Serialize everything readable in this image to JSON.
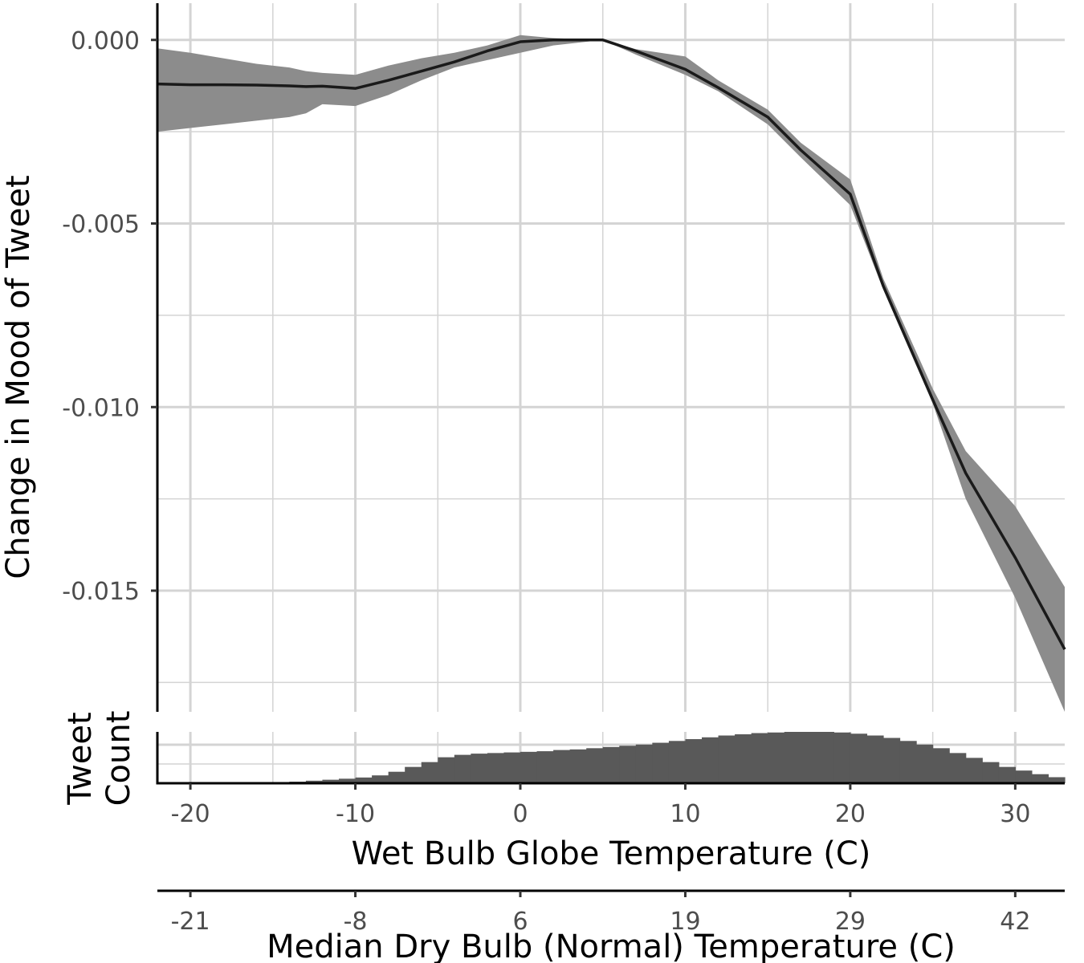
{
  "chart_data": {
    "type": "line",
    "ylabel": "Change in Mood of Tweet",
    "xlabel": "Wet Bulb Globe Temperature (C)",
    "x2label": "Median Dry Bulb (Normal) Temperature (C)",
    "hist_label_line1": "Tweet",
    "hist_label_line2": "Count",
    "xlim": [
      -22,
      33
    ],
    "ylim": [
      -0.0183,
      0.001
    ],
    "x_ticks": [
      -20,
      -10,
      0,
      10,
      20,
      30
    ],
    "x_tick_labels": [
      "-20",
      "-10",
      "0",
      "10",
      "20",
      "30"
    ],
    "y_ticks": [
      0.0,
      -0.005,
      -0.01,
      -0.015
    ],
    "y_tick_labels": [
      "0.000",
      "-0.005",
      "-0.010",
      "-0.015"
    ],
    "x2_tick_positions": [
      -20,
      -10,
      0,
      10,
      20,
      30
    ],
    "x2_tick_labels": [
      "-21",
      "-8",
      "6",
      "19",
      "29",
      "42"
    ],
    "grid": true,
    "colors": {
      "line": "#1a1a1a",
      "ribbon": "#8c8c8c",
      "bars": "#595959",
      "grid": "#d4d4d4"
    },
    "series": [
      {
        "x": [
          -22,
          -20,
          -18,
          -16,
          -14,
          -13,
          -12,
          -10,
          -8,
          -6,
          -4,
          -2,
          0,
          2,
          5,
          7,
          10,
          12,
          15,
          17,
          20,
          22,
          25,
          27,
          30,
          33
        ],
        "y": [
          -0.0012,
          -0.00122,
          -0.00122,
          -0.00123,
          -0.00125,
          -0.00127,
          -0.00126,
          -0.00132,
          -0.0011,
          -0.00085,
          -0.0006,
          -0.0003,
          -5e-05,
          0.0,
          0.0,
          -0.0003,
          -0.0008,
          -0.0013,
          -0.0021,
          -0.003,
          -0.0042,
          -0.0067,
          -0.0098,
          -0.0118,
          -0.0141,
          -0.0166
        ],
        "lower": [
          -0.0025,
          -0.0024,
          -0.0023,
          -0.0022,
          -0.0021,
          -0.002,
          -0.00175,
          -0.0018,
          -0.0015,
          -0.0011,
          -0.00075,
          -0.00055,
          -0.00035,
          -0.00015,
          0.0,
          -0.0004,
          -0.00095,
          -0.0014,
          -0.0023,
          -0.0032,
          -0.0045,
          -0.0068,
          -0.0099,
          -0.0125,
          -0.0152,
          -0.0183
        ],
        "upper": [
          -0.00023,
          -0.00035,
          -0.0005,
          -0.00065,
          -0.00075,
          -0.00085,
          -0.0009,
          -0.00095,
          -0.0007,
          -0.0005,
          -0.00035,
          -0.00015,
          0.00013,
          5e-05,
          0.0,
          -0.00025,
          -0.00045,
          -0.0011,
          -0.0019,
          -0.0028,
          -0.0038,
          -0.0065,
          -0.0095,
          -0.0112,
          -0.0127,
          -0.0149
        ]
      }
    ],
    "histogram": {
      "bin_start": -22,
      "bin_width": 1,
      "counts": [
        0,
        0,
        0,
        0,
        0.2,
        0.3,
        0.6,
        1.3,
        2.6,
        4.2,
        5.8,
        7.5,
        9.5,
        13,
        19,
        27,
        35,
        43,
        47,
        49,
        50,
        51,
        52,
        53,
        55,
        56,
        58,
        60,
        62,
        64,
        67,
        70,
        73,
        76,
        79,
        81,
        83,
        84,
        85,
        85,
        85,
        84,
        82,
        79,
        75,
        70,
        64,
        58,
        50,
        42,
        35,
        27,
        21,
        15,
        10,
        6,
        4,
        2,
        1,
        0.5,
        0.3,
        0.2,
        0,
        0,
        0
      ]
    }
  }
}
